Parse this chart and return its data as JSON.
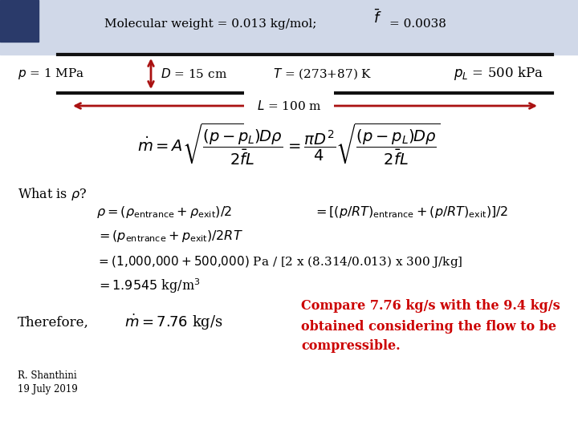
{
  "bg_color": "#ffffff",
  "top_bg_color": "#d0d8e8",
  "dark_sq_color": "#2a3a6a",
  "pipe_color": "#111111",
  "arrow_color": "#aa1111",
  "red_text_color": "#cc0000",
  "black_text_color": "#111111",
  "header_text": "Molecular weight = 0.013 kg/mol;",
  "f_val_text": "= 0.0038",
  "p_left": "$p$ = 1 MPa",
  "D_text": "$D$ = 15 cm",
  "T_text": "$T$ = (273+87) K",
  "pL_text": "$p_L$ = 500 kPa",
  "L_text": "$L$ = 100 m",
  "compare_text_1": "Compare 7.76 kg/s with the 9.4 kg/s",
  "compare_text_2": "obtained considering the flow to be",
  "compare_text_3": "compressible.",
  "footer1": "R. Shanthini",
  "footer2": "19 July 2019",
  "fig_width": 7.2,
  "fig_height": 5.4,
  "dpi": 100
}
